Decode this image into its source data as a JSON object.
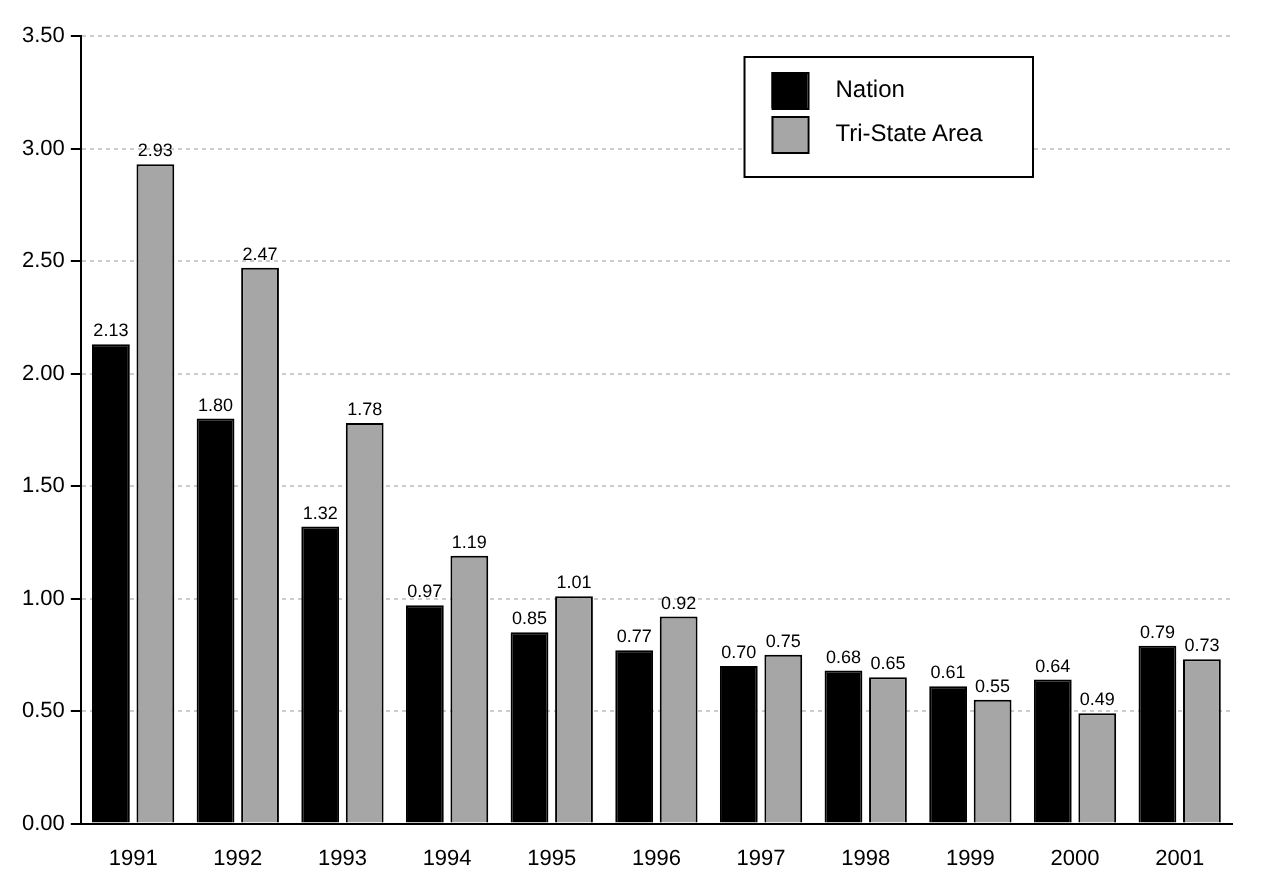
{
  "chart_data": {
    "type": "bar",
    "categories": [
      "1991",
      "1992",
      "1993",
      "1994",
      "1995",
      "1996",
      "1997",
      "1998",
      "1999",
      "2000",
      "2001"
    ],
    "series": [
      {
        "name": "Nation",
        "color": "#000000",
        "values": [
          2.13,
          1.8,
          1.32,
          0.97,
          0.85,
          0.77,
          0.7,
          0.68,
          0.61,
          0.64,
          0.79
        ],
        "value_labels": [
          "2.13",
          "1.80",
          "1.32",
          "0.97",
          "0.85",
          "0.77",
          "0.70",
          "0.68",
          "0.61",
          "0.64",
          "0.79"
        ]
      },
      {
        "name": "Tri-State Area",
        "color": "#a6a6a6",
        "values": [
          2.93,
          2.47,
          1.78,
          1.19,
          1.01,
          0.92,
          0.75,
          0.65,
          0.55,
          0.49,
          0.73
        ],
        "value_labels": [
          "2.93",
          "2.47",
          "1.78",
          "1.19",
          "1.01",
          "0.92",
          "0.75",
          "0.65",
          "0.55",
          "0.49",
          "0.73"
        ]
      }
    ],
    "ylim": [
      0,
      3.5
    ],
    "yticks": [
      {
        "value": 0,
        "label": "0.00"
      },
      {
        "value": 0.5,
        "label": "0.50"
      },
      {
        "value": 1,
        "label": "1.00"
      },
      {
        "value": 1.5,
        "label": "1.50"
      },
      {
        "value": 2,
        "label": "2.00"
      },
      {
        "value": 2.5,
        "label": "2.50"
      },
      {
        "value": 3,
        "label": "3.00"
      },
      {
        "value": 3.5,
        "label": "3.50"
      }
    ],
    "grid": "y",
    "legend": "top right"
  }
}
